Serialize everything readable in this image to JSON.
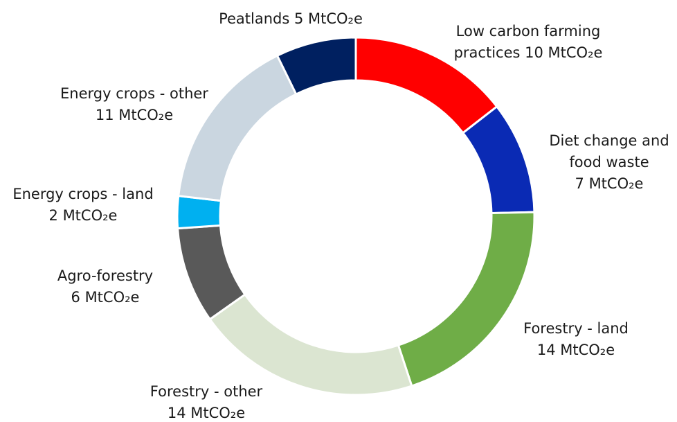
{
  "chart_data": {
    "type": "pie",
    "variant": "donut",
    "title": "",
    "unit": "MtCO2e",
    "slices": [
      {
        "name": "Low carbon farming practices",
        "value": 10,
        "color": "#ff0000",
        "label_lines": [
          "Low carbon farming",
          "practices 10 MtCO₂e"
        ]
      },
      {
        "name": "Diet change and food waste",
        "value": 7,
        "color": "#0a2ab4",
        "label_lines": [
          "Diet change and",
          "food waste",
          "7 MtCO₂e"
        ]
      },
      {
        "name": "Forestry - land",
        "value": 14,
        "color": "#6fad47",
        "label_lines": [
          "Forestry - land",
          "14 MtCO₂e"
        ]
      },
      {
        "name": "Forestry - other",
        "value": 14,
        "color": "#dbe5d1",
        "label_lines": [
          "Forestry - other",
          "14 MtCO₂e"
        ]
      },
      {
        "name": "Agro-forestry",
        "value": 6,
        "color": "#595959",
        "label_lines": [
          "Agro-forestry",
          "6 MtCO₂e"
        ]
      },
      {
        "name": "Energy crops - land",
        "value": 2,
        "color": "#00b0f0",
        "label_lines": [
          "Energy crops - land",
          "2 MtCO₂e"
        ]
      },
      {
        "name": "Energy crops - other",
        "value": 11,
        "color": "#cad6e0",
        "label_lines": [
          "Energy crops - other",
          "11 MtCO₂e"
        ]
      },
      {
        "name": "Peatlands",
        "value": 5,
        "color": "#002060",
        "label_lines": [
          "Peatlands 5 MtCO₂e"
        ]
      }
    ]
  }
}
